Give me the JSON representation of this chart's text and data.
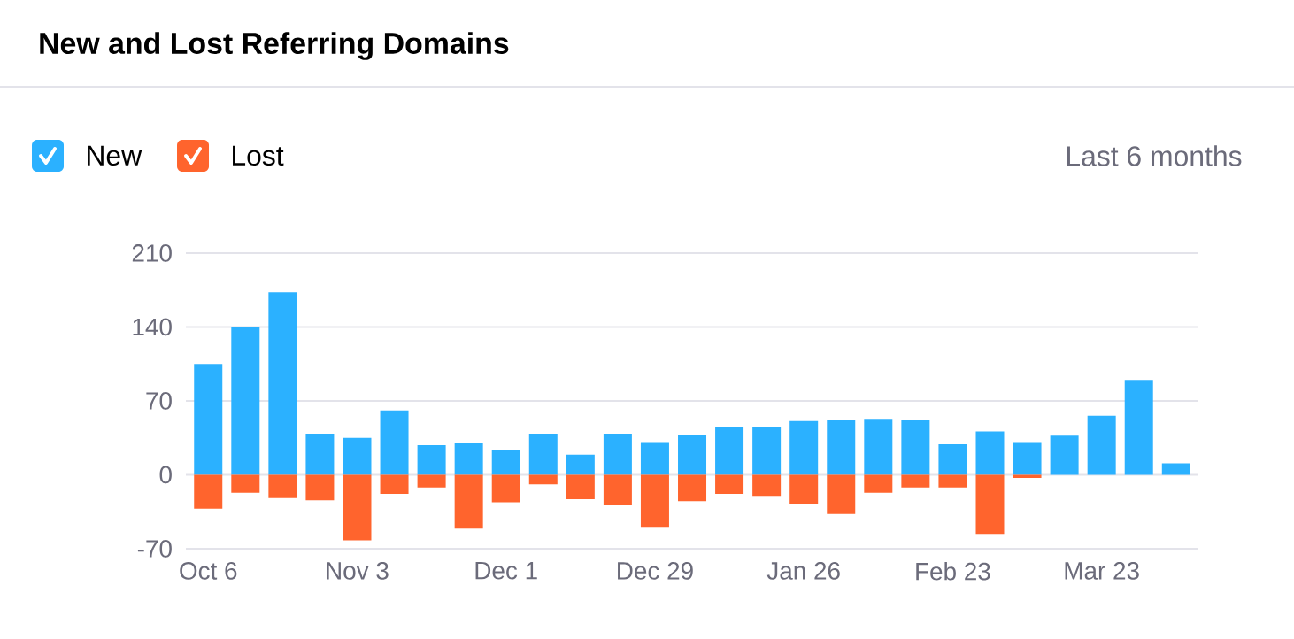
{
  "chart_data": {
    "type": "bar",
    "title": "New and Lost Referring Domains",
    "annotations": [
      "Last 6 months"
    ],
    "categories": [
      "Oct 6",
      null,
      null,
      null,
      "Nov 3",
      null,
      null,
      null,
      "Dec 1",
      null,
      null,
      null,
      "Dec 29",
      null,
      null,
      null,
      "Jan 26",
      null,
      null,
      null,
      "Feb 23",
      null,
      null,
      null,
      "Mar 23",
      null,
      null
    ],
    "series": [
      {
        "name": "New",
        "color": "#2bb1ff",
        "values": [
          105,
          140,
          173,
          39,
          35,
          61,
          28,
          30,
          23,
          39,
          19,
          39,
          31,
          38,
          45,
          45,
          51,
          52,
          53,
          52,
          29,
          41,
          31,
          37,
          56,
          90,
          11
        ]
      },
      {
        "name": "Lost",
        "color": "#ff642d",
        "values": [
          -32,
          -17,
          -22,
          -24,
          -62,
          -18,
          -12,
          -51,
          -26,
          -9,
          -23,
          -29,
          -50,
          -25,
          -18,
          -20,
          -28,
          -37,
          -17,
          -12,
          -12,
          -56,
          -3,
          null,
          null,
          null,
          null
        ]
      }
    ],
    "stacked": true,
    "ylim": [
      -70,
      210
    ],
    "yticks": [
      -70,
      0,
      70,
      140,
      210
    ],
    "grid": "y",
    "legend": "top left"
  }
}
